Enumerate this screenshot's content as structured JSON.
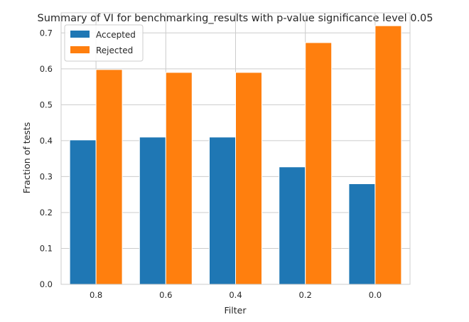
{
  "chart_data": {
    "type": "bar",
    "title": "Summary of VI for benchmarking_results with p-value significance level 0.05",
    "xlabel": "Filter",
    "ylabel": "Fraction of tests",
    "categories": [
      "0.8",
      "0.6",
      "0.4",
      "0.2",
      "0.0"
    ],
    "series": [
      {
        "name": "Accepted",
        "color": "#1f77b4",
        "values": [
          0.402,
          0.41,
          0.41,
          0.327,
          0.28
        ]
      },
      {
        "name": "Rejected",
        "color": "#ff7f0e",
        "values": [
          0.598,
          0.59,
          0.59,
          0.673,
          0.72
        ]
      }
    ],
    "ylim": [
      0,
      0.756
    ],
    "yticks": [
      "0.0",
      "0.1",
      "0.2",
      "0.3",
      "0.4",
      "0.5",
      "0.6",
      "0.7"
    ],
    "grid": true,
    "legend_position": "top-left"
  }
}
